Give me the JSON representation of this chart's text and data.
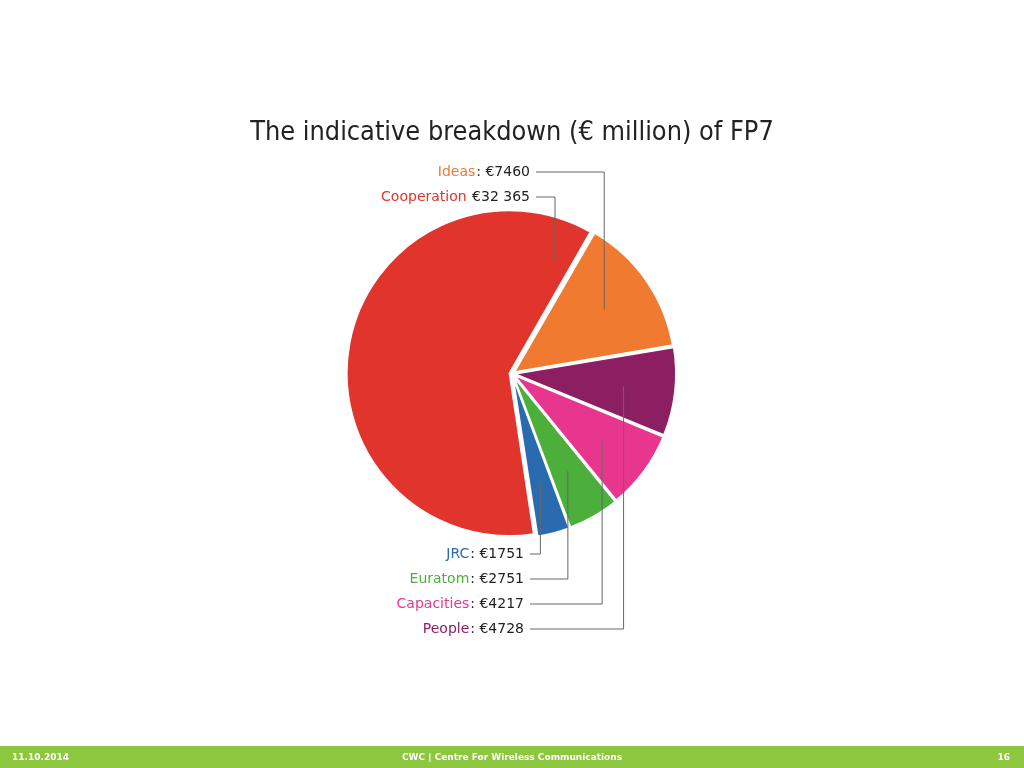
{
  "chart_data": {
    "type": "pie",
    "title": "The indicative breakdown (€ million) of FP7",
    "categories": [
      "Ideas",
      "People",
      "Capacities",
      "Euratom",
      "JRC",
      "Cooperation"
    ],
    "values": [
      7460,
      4728,
      4217,
      2751,
      1751,
      32365
    ],
    "colors": [
      "#f07a30",
      "#8c1f62",
      "#e8368f",
      "#4caf3c",
      "#2a6bb0",
      "#e0342c"
    ],
    "value_labels": [
      ": €7460",
      ": €4728",
      ": €4217",
      ": €2751",
      ": €1751",
      " €32 365"
    ],
    "annotations": [
      "11.10.2014",
      "CWC | Centre For Wireless Communications",
      "16"
    ],
    "legend": false
  }
}
